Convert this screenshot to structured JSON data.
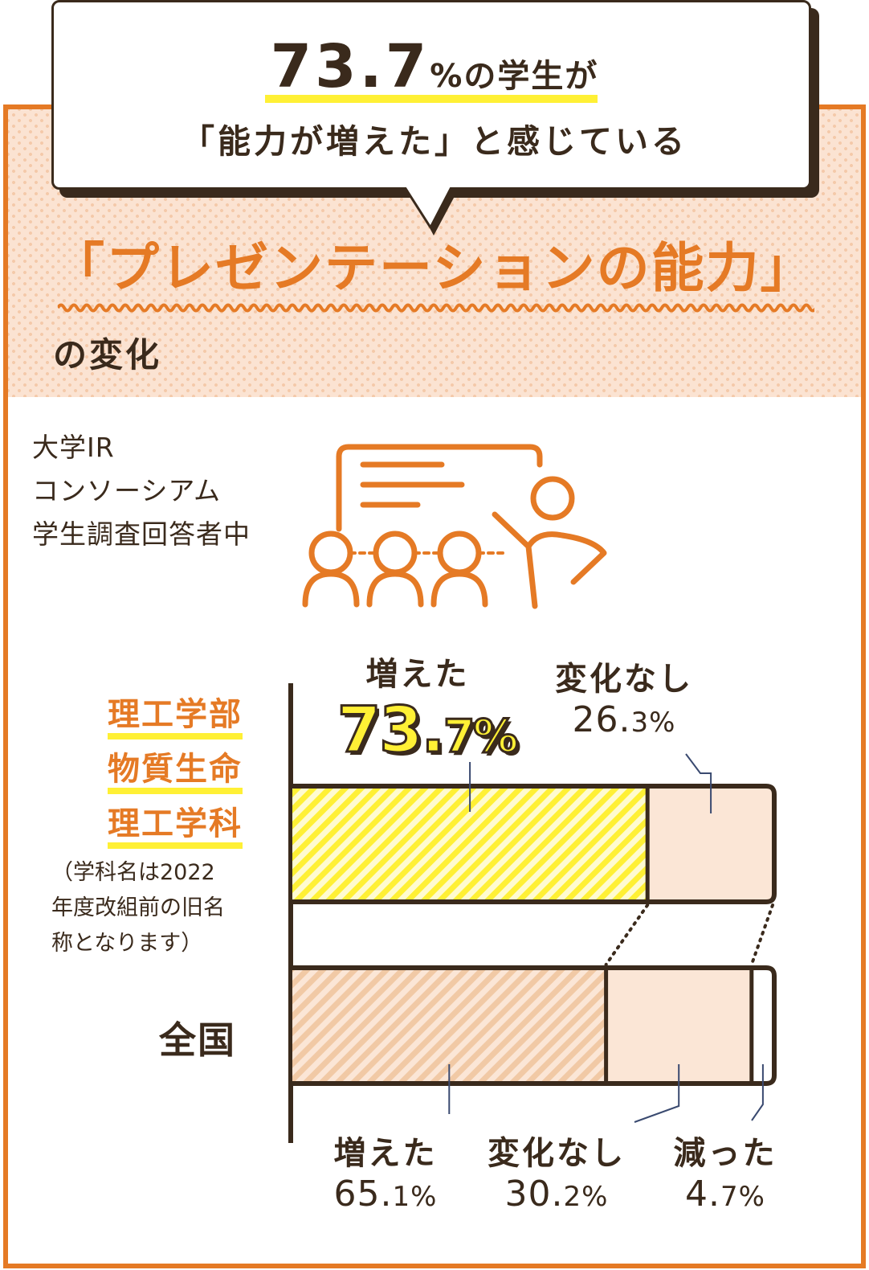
{
  "bubble": {
    "value": "73.7",
    "line1_suffix": "%の学生が",
    "line2": "「能力が増えた」と感じている"
  },
  "headline": "「プレゼンテーションの能力」",
  "subhead": "の変化",
  "source": {
    "line1": "大学IR",
    "line2": "コンソーシアム",
    "line3": "学生調査回答者中"
  },
  "group": {
    "line1": "理工学部",
    "line2": "物質生命",
    "line3": "理工学科",
    "note_line1": "（学科名は2022",
    "note_line2": "年度改組前の旧名",
    "note_line3": "称となります）"
  },
  "national_label": "全国",
  "labels": {
    "top_increased": "増えた",
    "top_increased_value_int": "73.",
    "top_increased_value_dec": "7%",
    "top_no_change": "変化なし",
    "top_no_change_value_int": "26.",
    "top_no_change_value_dec": "3%",
    "bottom_increased": "増えた",
    "bottom_increased_value_int": "65.",
    "bottom_increased_value_dec": "1%",
    "bottom_no_change": "変化なし",
    "bottom_no_change_value_int": "30.",
    "bottom_no_change_value_dec": "2%",
    "bottom_decreased": "減った",
    "bottom_decreased_value_int": "4.",
    "bottom_decreased_value_dec": "7%"
  },
  "colors": {
    "accent_orange": "#e57a25",
    "highlight_yellow": "#fff035",
    "dark_brown": "#3a2a1c",
    "increase_hatch_top": "#fff035",
    "increase_hatch_bottom": "#f1c9a5",
    "no_change_fill": "#fbe6d6",
    "decreased_fill": "#ffffff"
  },
  "chart_data": {
    "type": "bar",
    "orientation": "horizontal-stacked",
    "categories": [
      "理工学部 物質生命 理工学科",
      "全国"
    ],
    "series": [
      {
        "name": "増えた",
        "values": [
          73.7,
          65.1
        ]
      },
      {
        "name": "変化なし",
        "values": [
          26.3,
          30.2
        ]
      },
      {
        "name": "減った",
        "values": [
          0,
          4.7
        ]
      }
    ],
    "xlim": [
      0,
      100
    ]
  }
}
